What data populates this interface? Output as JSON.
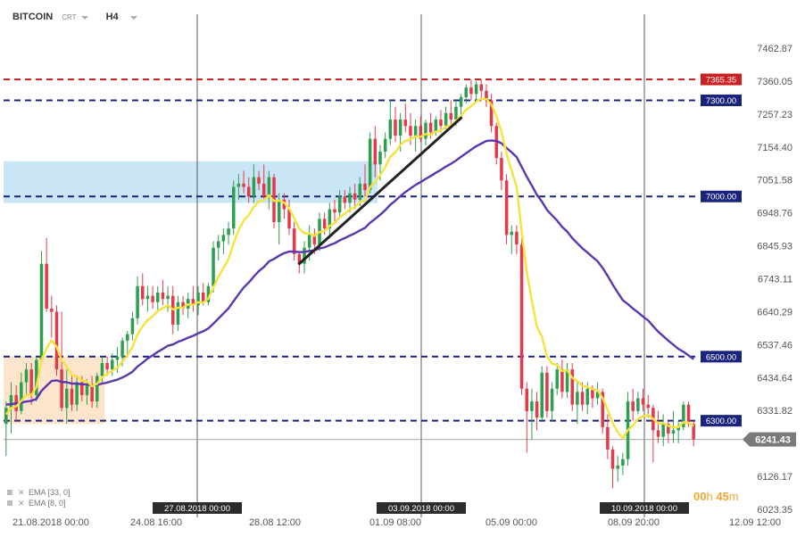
{
  "toolbar": {
    "symbol": "BITCOIN",
    "chart_type": "CRT",
    "timeframe": "H4"
  },
  "countdown": {
    "hours": "00",
    "h_unit": "h",
    "minutes": "45",
    "m_unit": "m"
  },
  "colors": {
    "candle_up": "#2e9e4f",
    "candle_down": "#e23a4a",
    "ema_fast": "#f5e33c",
    "ema_slow": "#5a36b0",
    "line_red": "#cc1f1f",
    "line_navy": "#1a237e",
    "zone_blue": "#bfe1f5",
    "zone_orange": "#fde0c2",
    "price_tag": "#7a7a7a"
  },
  "chart_data": {
    "type": "candlestick",
    "series": [
      {
        "name": "EMA [33, 0]"
      },
      {
        "name": "EMA [8, 0]"
      }
    ],
    "y_ticks": [
      "7462.87",
      "7360.05",
      "7257.23",
      "7154.40",
      "7051.58",
      "6948.76",
      "6845.93",
      "6743.11",
      "6640.29",
      "6537.46",
      "6434.64",
      "6331.82",
      "6126.17",
      "6023.35"
    ],
    "ylim": [
      6023.35,
      7462.87
    ],
    "x_ticks": [
      "21.08.2018 00:00",
      "24.08 16:00",
      "28.08 12:00",
      "01.09 08:00",
      "05.09 00:00",
      "08.09 20:00",
      "12.09 12:00"
    ],
    "vertical_markers": [
      "27.08.2018 00:00",
      "03.09.2018 00:00",
      "10.09.2018 00:00"
    ],
    "horizontal_levels": [
      {
        "label": "7365.35",
        "value": 7365.35,
        "style": "red"
      },
      {
        "label": "7300.00",
        "value": 7300,
        "style": "navy"
      },
      {
        "label": "7000.00",
        "value": 7000,
        "style": "navy"
      },
      {
        "label": "6500.00",
        "value": 6500,
        "style": "navy"
      },
      {
        "label": "6300.00",
        "value": 6300,
        "style": "navy"
      }
    ],
    "current_price": {
      "label": "6241.43",
      "value": 6241.43
    },
    "zones": [
      {
        "kind": "support",
        "from_index": 0,
        "to_index": 19,
        "low": 6290,
        "high": 6500
      },
      {
        "kind": "resistance",
        "from_index": 0,
        "to_index": 73,
        "low": 6980,
        "high": 7110
      }
    ],
    "trendline": {
      "from": [
        58,
        6790
      ],
      "to": [
        90,
        7245
      ]
    },
    "candles": [
      {
        "o": 6290,
        "h": 6360,
        "l": 6190,
        "c": 6340
      },
      {
        "o": 6340,
        "h": 6420,
        "l": 6260,
        "c": 6380
      },
      {
        "o": 6380,
        "h": 6410,
        "l": 6300,
        "c": 6330
      },
      {
        "o": 6330,
        "h": 6450,
        "l": 6320,
        "c": 6420
      },
      {
        "o": 6420,
        "h": 6480,
        "l": 6380,
        "c": 6460
      },
      {
        "o": 6460,
        "h": 6480,
        "l": 6350,
        "c": 6380
      },
      {
        "o": 6380,
        "h": 6500,
        "l": 6360,
        "c": 6490
      },
      {
        "o": 6490,
        "h": 6830,
        "l": 6480,
        "c": 6790
      },
      {
        "o": 6790,
        "h": 6870,
        "l": 6640,
        "c": 6650
      },
      {
        "o": 6650,
        "h": 6690,
        "l": 6560,
        "c": 6640
      },
      {
        "o": 6640,
        "h": 6660,
        "l": 6440,
        "c": 6460
      },
      {
        "o": 6460,
        "h": 6640,
        "l": 6330,
        "c": 6340
      },
      {
        "o": 6340,
        "h": 6460,
        "l": 6290,
        "c": 6400
      },
      {
        "o": 6400,
        "h": 6440,
        "l": 6330,
        "c": 6350
      },
      {
        "o": 6350,
        "h": 6440,
        "l": 6330,
        "c": 6420
      },
      {
        "o": 6420,
        "h": 6440,
        "l": 6360,
        "c": 6380
      },
      {
        "o": 6380,
        "h": 6430,
        "l": 6350,
        "c": 6410
      },
      {
        "o": 6410,
        "h": 6440,
        "l": 6340,
        "c": 6360
      },
      {
        "o": 6360,
        "h": 6450,
        "l": 6340,
        "c": 6440
      },
      {
        "o": 6440,
        "h": 6500,
        "l": 6420,
        "c": 6480
      },
      {
        "o": 6480,
        "h": 6500,
        "l": 6440,
        "c": 6460
      },
      {
        "o": 6460,
        "h": 6510,
        "l": 6440,
        "c": 6490
      },
      {
        "o": 6490,
        "h": 6530,
        "l": 6450,
        "c": 6500
      },
      {
        "o": 6500,
        "h": 6560,
        "l": 6470,
        "c": 6550
      },
      {
        "o": 6550,
        "h": 6580,
        "l": 6500,
        "c": 6570
      },
      {
        "o": 6570,
        "h": 6640,
        "l": 6550,
        "c": 6620
      },
      {
        "o": 6620,
        "h": 6750,
        "l": 6600,
        "c": 6720
      },
      {
        "o": 6720,
        "h": 6760,
        "l": 6660,
        "c": 6680
      },
      {
        "o": 6680,
        "h": 6720,
        "l": 6640,
        "c": 6690
      },
      {
        "o": 6690,
        "h": 6720,
        "l": 6650,
        "c": 6670
      },
      {
        "o": 6670,
        "h": 6720,
        "l": 6640,
        "c": 6700
      },
      {
        "o": 6700,
        "h": 6740,
        "l": 6660,
        "c": 6680
      },
      {
        "o": 6680,
        "h": 6720,
        "l": 6640,
        "c": 6690
      },
      {
        "o": 6690,
        "h": 6720,
        "l": 6570,
        "c": 6600
      },
      {
        "o": 6600,
        "h": 6690,
        "l": 6580,
        "c": 6670
      },
      {
        "o": 6670,
        "h": 6690,
        "l": 6630,
        "c": 6650
      },
      {
        "o": 6650,
        "h": 6700,
        "l": 6620,
        "c": 6680
      },
      {
        "o": 6680,
        "h": 6720,
        "l": 6640,
        "c": 6660
      },
      {
        "o": 6660,
        "h": 6720,
        "l": 6630,
        "c": 6700
      },
      {
        "o": 6700,
        "h": 6730,
        "l": 6660,
        "c": 6670
      },
      {
        "o": 6670,
        "h": 6730,
        "l": 6660,
        "c": 6720
      },
      {
        "o": 6720,
        "h": 6860,
        "l": 6700,
        "c": 6840
      },
      {
        "o": 6840,
        "h": 6880,
        "l": 6800,
        "c": 6860
      },
      {
        "o": 6860,
        "h": 6900,
        "l": 6820,
        "c": 6880
      },
      {
        "o": 6880,
        "h": 6920,
        "l": 6850,
        "c": 6900
      },
      {
        "o": 6900,
        "h": 7050,
        "l": 6880,
        "c": 7030
      },
      {
        "o": 7030,
        "h": 7070,
        "l": 6990,
        "c": 7040
      },
      {
        "o": 7040,
        "h": 7080,
        "l": 7010,
        "c": 7030
      },
      {
        "o": 7030,
        "h": 7060,
        "l": 6980,
        "c": 7000
      },
      {
        "o": 7000,
        "h": 7100,
        "l": 6980,
        "c": 7060
      },
      {
        "o": 7060,
        "h": 7080,
        "l": 7020,
        "c": 7040
      },
      {
        "o": 7040,
        "h": 7100,
        "l": 6990,
        "c": 7000
      },
      {
        "o": 7000,
        "h": 7080,
        "l": 6960,
        "c": 7060
      },
      {
        "o": 7060,
        "h": 7070,
        "l": 6900,
        "c": 6920
      },
      {
        "o": 6920,
        "h": 7010,
        "l": 6850,
        "c": 6990
      },
      {
        "o": 6990,
        "h": 7010,
        "l": 6930,
        "c": 6960
      },
      {
        "o": 6960,
        "h": 6990,
        "l": 6880,
        "c": 6900
      },
      {
        "o": 6900,
        "h": 6920,
        "l": 6800,
        "c": 6820
      },
      {
        "o": 6820,
        "h": 6830,
        "l": 6760,
        "c": 6790
      },
      {
        "o": 6790,
        "h": 6860,
        "l": 6760,
        "c": 6840
      },
      {
        "o": 6840,
        "h": 6910,
        "l": 6800,
        "c": 6880
      },
      {
        "o": 6880,
        "h": 6900,
        "l": 6820,
        "c": 6850
      },
      {
        "o": 6850,
        "h": 6950,
        "l": 6830,
        "c": 6930
      },
      {
        "o": 6930,
        "h": 6950,
        "l": 6880,
        "c": 6900
      },
      {
        "o": 6900,
        "h": 6980,
        "l": 6880,
        "c": 6960
      },
      {
        "o": 6960,
        "h": 6990,
        "l": 6920,
        "c": 6950
      },
      {
        "o": 6950,
        "h": 7020,
        "l": 6930,
        "c": 7000
      },
      {
        "o": 7000,
        "h": 7020,
        "l": 6960,
        "c": 6980
      },
      {
        "o": 6980,
        "h": 7030,
        "l": 6950,
        "c": 7010
      },
      {
        "o": 7010,
        "h": 7040,
        "l": 6960,
        "c": 6990
      },
      {
        "o": 6990,
        "h": 7060,
        "l": 6970,
        "c": 7040
      },
      {
        "o": 7040,
        "h": 7100,
        "l": 7000,
        "c": 7020
      },
      {
        "o": 7020,
        "h": 7200,
        "l": 7010,
        "c": 7180
      },
      {
        "o": 7180,
        "h": 7220,
        "l": 7060,
        "c": 7100
      },
      {
        "o": 7100,
        "h": 7160,
        "l": 7050,
        "c": 7140
      },
      {
        "o": 7140,
        "h": 7200,
        "l": 7120,
        "c": 7180
      },
      {
        "o": 7180,
        "h": 7300,
        "l": 7160,
        "c": 7240
      },
      {
        "o": 7240,
        "h": 7280,
        "l": 7170,
        "c": 7190
      },
      {
        "o": 7190,
        "h": 7260,
        "l": 7140,
        "c": 7240
      },
      {
        "o": 7240,
        "h": 7290,
        "l": 7200,
        "c": 7220
      },
      {
        "o": 7220,
        "h": 7260,
        "l": 7160,
        "c": 7190
      },
      {
        "o": 7190,
        "h": 7240,
        "l": 7140,
        "c": 7220
      },
      {
        "o": 7220,
        "h": 7250,
        "l": 7170,
        "c": 7180
      },
      {
        "o": 7180,
        "h": 7240,
        "l": 7160,
        "c": 7230
      },
      {
        "o": 7230,
        "h": 7260,
        "l": 7180,
        "c": 7200
      },
      {
        "o": 7200,
        "h": 7250,
        "l": 7190,
        "c": 7240
      },
      {
        "o": 7240,
        "h": 7270,
        "l": 7200,
        "c": 7220
      },
      {
        "o": 7220,
        "h": 7280,
        "l": 7210,
        "c": 7260
      },
      {
        "o": 7260,
        "h": 7300,
        "l": 7220,
        "c": 7240
      },
      {
        "o": 7240,
        "h": 7300,
        "l": 7220,
        "c": 7280
      },
      {
        "o": 7280,
        "h": 7320,
        "l": 7250,
        "c": 7310
      },
      {
        "o": 7310,
        "h": 7350,
        "l": 7290,
        "c": 7340
      },
      {
        "o": 7340,
        "h": 7365,
        "l": 7300,
        "c": 7320
      },
      {
        "o": 7320,
        "h": 7360,
        "l": 7300,
        "c": 7350
      },
      {
        "o": 7350,
        "h": 7365,
        "l": 7300,
        "c": 7330
      },
      {
        "o": 7330,
        "h": 7350,
        "l": 7280,
        "c": 7300
      },
      {
        "o": 7300,
        "h": 7320,
        "l": 7200,
        "c": 7220
      },
      {
        "o": 7220,
        "h": 7230,
        "l": 7100,
        "c": 7120
      },
      {
        "o": 7120,
        "h": 7140,
        "l": 7020,
        "c": 7050
      },
      {
        "o": 7050,
        "h": 7070,
        "l": 6850,
        "c": 6880
      },
      {
        "o": 6880,
        "h": 6910,
        "l": 6820,
        "c": 6890
      },
      {
        "o": 6890,
        "h": 6910,
        "l": 6820,
        "c": 6850
      },
      {
        "o": 6850,
        "h": 6870,
        "l": 6380,
        "c": 6400
      },
      {
        "o": 6400,
        "h": 6420,
        "l": 6200,
        "c": 6330
      },
      {
        "o": 6330,
        "h": 6400,
        "l": 6240,
        "c": 6360
      },
      {
        "o": 6360,
        "h": 6390,
        "l": 6270,
        "c": 6310
      },
      {
        "o": 6310,
        "h": 6470,
        "l": 6300,
        "c": 6450
      },
      {
        "o": 6450,
        "h": 6470,
        "l": 6310,
        "c": 6330
      },
      {
        "o": 6330,
        "h": 6420,
        "l": 6300,
        "c": 6400
      },
      {
        "o": 6400,
        "h": 6480,
        "l": 6380,
        "c": 6460
      },
      {
        "o": 6460,
        "h": 6490,
        "l": 6370,
        "c": 6390
      },
      {
        "o": 6390,
        "h": 6480,
        "l": 6370,
        "c": 6460
      },
      {
        "o": 6460,
        "h": 6480,
        "l": 6330,
        "c": 6350
      },
      {
        "o": 6350,
        "h": 6420,
        "l": 6290,
        "c": 6390
      },
      {
        "o": 6390,
        "h": 6420,
        "l": 6330,
        "c": 6350
      },
      {
        "o": 6350,
        "h": 6420,
        "l": 6320,
        "c": 6400
      },
      {
        "o": 6400,
        "h": 6410,
        "l": 6340,
        "c": 6370
      },
      {
        "o": 6370,
        "h": 6420,
        "l": 6350,
        "c": 6390
      },
      {
        "o": 6390,
        "h": 6400,
        "l": 6260,
        "c": 6280
      },
      {
        "o": 6280,
        "h": 6320,
        "l": 6180,
        "c": 6210
      },
      {
        "o": 6210,
        "h": 6220,
        "l": 6090,
        "c": 6150
      },
      {
        "o": 6150,
        "h": 6190,
        "l": 6110,
        "c": 6160
      },
      {
        "o": 6160,
        "h": 6200,
        "l": 6130,
        "c": 6180
      },
      {
        "o": 6180,
        "h": 6390,
        "l": 6160,
        "c": 6360
      },
      {
        "o": 6360,
        "h": 6400,
        "l": 6300,
        "c": 6330
      },
      {
        "o": 6330,
        "h": 6390,
        "l": 6320,
        "c": 6370
      },
      {
        "o": 6370,
        "h": 6400,
        "l": 6330,
        "c": 6350
      },
      {
        "o": 6350,
        "h": 6380,
        "l": 6310,
        "c": 6340
      },
      {
        "o": 6340,
        "h": 6350,
        "l": 6170,
        "c": 6270
      },
      {
        "o": 6270,
        "h": 6330,
        "l": 6230,
        "c": 6250
      },
      {
        "o": 6250,
        "h": 6320,
        "l": 6220,
        "c": 6290
      },
      {
        "o": 6290,
        "h": 6300,
        "l": 6230,
        "c": 6260
      },
      {
        "o": 6260,
        "h": 6330,
        "l": 6230,
        "c": 6270
      },
      {
        "o": 6270,
        "h": 6300,
        "l": 6230,
        "c": 6280
      },
      {
        "o": 6280,
        "h": 6360,
        "l": 6270,
        "c": 6350
      },
      {
        "o": 6350,
        "h": 6360,
        "l": 6280,
        "c": 6290
      },
      {
        "o": 6290,
        "h": 6300,
        "l": 6220,
        "c": 6241.43
      }
    ],
    "ema_fast_values": [
      6320,
      6340,
      6345,
      6362,
      6381,
      6381,
      6405,
      6490,
      6525,
      6551,
      6531,
      6488,
      6469,
      6443,
      6438,
      6425,
      6422,
      6408,
      6415,
      6436,
      6446,
      6456,
      6466,
      6485,
      6504,
      6530,
      6570,
      6595,
      6614,
      6626,
      6643,
      6651,
      6660,
      6647,
      6653,
      6653,
      6663,
      6662,
      6670,
      6669,
      6681,
      6716,
      6749,
      6777,
      6805,
      6854,
      6895,
      6925,
      6942,
      6968,
      6984,
      6988,
      7004,
      6986,
      6987,
      6981,
      6963,
      6931,
      6899,
      6885,
      6884,
      6877,
      6889,
      6892,
      6908,
      6917,
      6936,
      6946,
      6960,
      6966,
      6982,
      6988,
      7030,
      7045,
      7066,
      7091,
      7124,
      7138,
      7161,
      7174,
      7178,
      7188,
      7186,
      7195,
      7192,
      7202,
      7206,
      7218,
      7222,
      7235,
      7252,
      7271,
      7281,
      7296,
      7305,
      7304,
      7287,
      7250,
      7202,
      7133,
      7080,
      7030,
      6890,
      6765,
      6675,
      6594,
      6563,
      6501,
      6478,
      6474,
      6455,
      6457,
      6434,
      6424,
      6408,
      6406,
      6398,
      6396,
      6370,
      6334,
      6293,
      6264,
      6245,
      6271,
      6285,
      6305,
      6314,
      6318,
      6306,
      6292,
      6292,
      6284,
      6280,
      6280,
      6295,
      6294,
      6283
    ],
    "ema_slow_values": [
      6350,
      6352,
      6354,
      6356,
      6360,
      6362,
      6368,
      6393,
      6409,
      6424,
      6426,
      6421,
      6420,
      6416,
      6416,
      6414,
      6413,
      6410,
      6412,
      6416,
      6419,
      6424,
      6428,
      6435,
      6443,
      6453,
      6469,
      6481,
      6494,
      6504,
      6515,
      6524,
      6534,
      6538,
      6546,
      6552,
      6559,
      6565,
      6573,
      6579,
      6588,
      6603,
      6619,
      6635,
      6651,
      6673,
      6695,
      6716,
      6731,
      6750,
      6767,
      6780,
      6797,
      6805,
      6815,
      6823,
      6828,
      6828,
      6826,
      6827,
      6830,
      6832,
      6838,
      6841,
      6848,
      6854,
      6863,
      6870,
      6878,
      6885,
      6894,
      6902,
      6918,
      6930,
      6943,
      6957,
      6974,
      6987,
      7001,
      7014,
      7025,
      7036,
      7045,
      7055,
      7064,
      7074,
      7083,
      7093,
      7102,
      7112,
      7124,
      7135,
      7146,
      7157,
      7165,
      7173,
      7175,
      7173,
      7166,
      7151,
      7138,
      7123,
      7092,
      7062,
      7034,
      7005,
      6984,
      6958,
      6941,
      6925,
      6905,
      6890,
      6870,
      6854,
      6838,
      6825,
      6811,
      6798,
      6777,
      6752,
      6725,
      6700,
      6676,
      6664,
      6650,
      6638,
      6625,
      6613,
      6595,
      6578,
      6564,
      6550,
      6537,
      6524,
      6515,
      6504,
      6492
    ]
  }
}
